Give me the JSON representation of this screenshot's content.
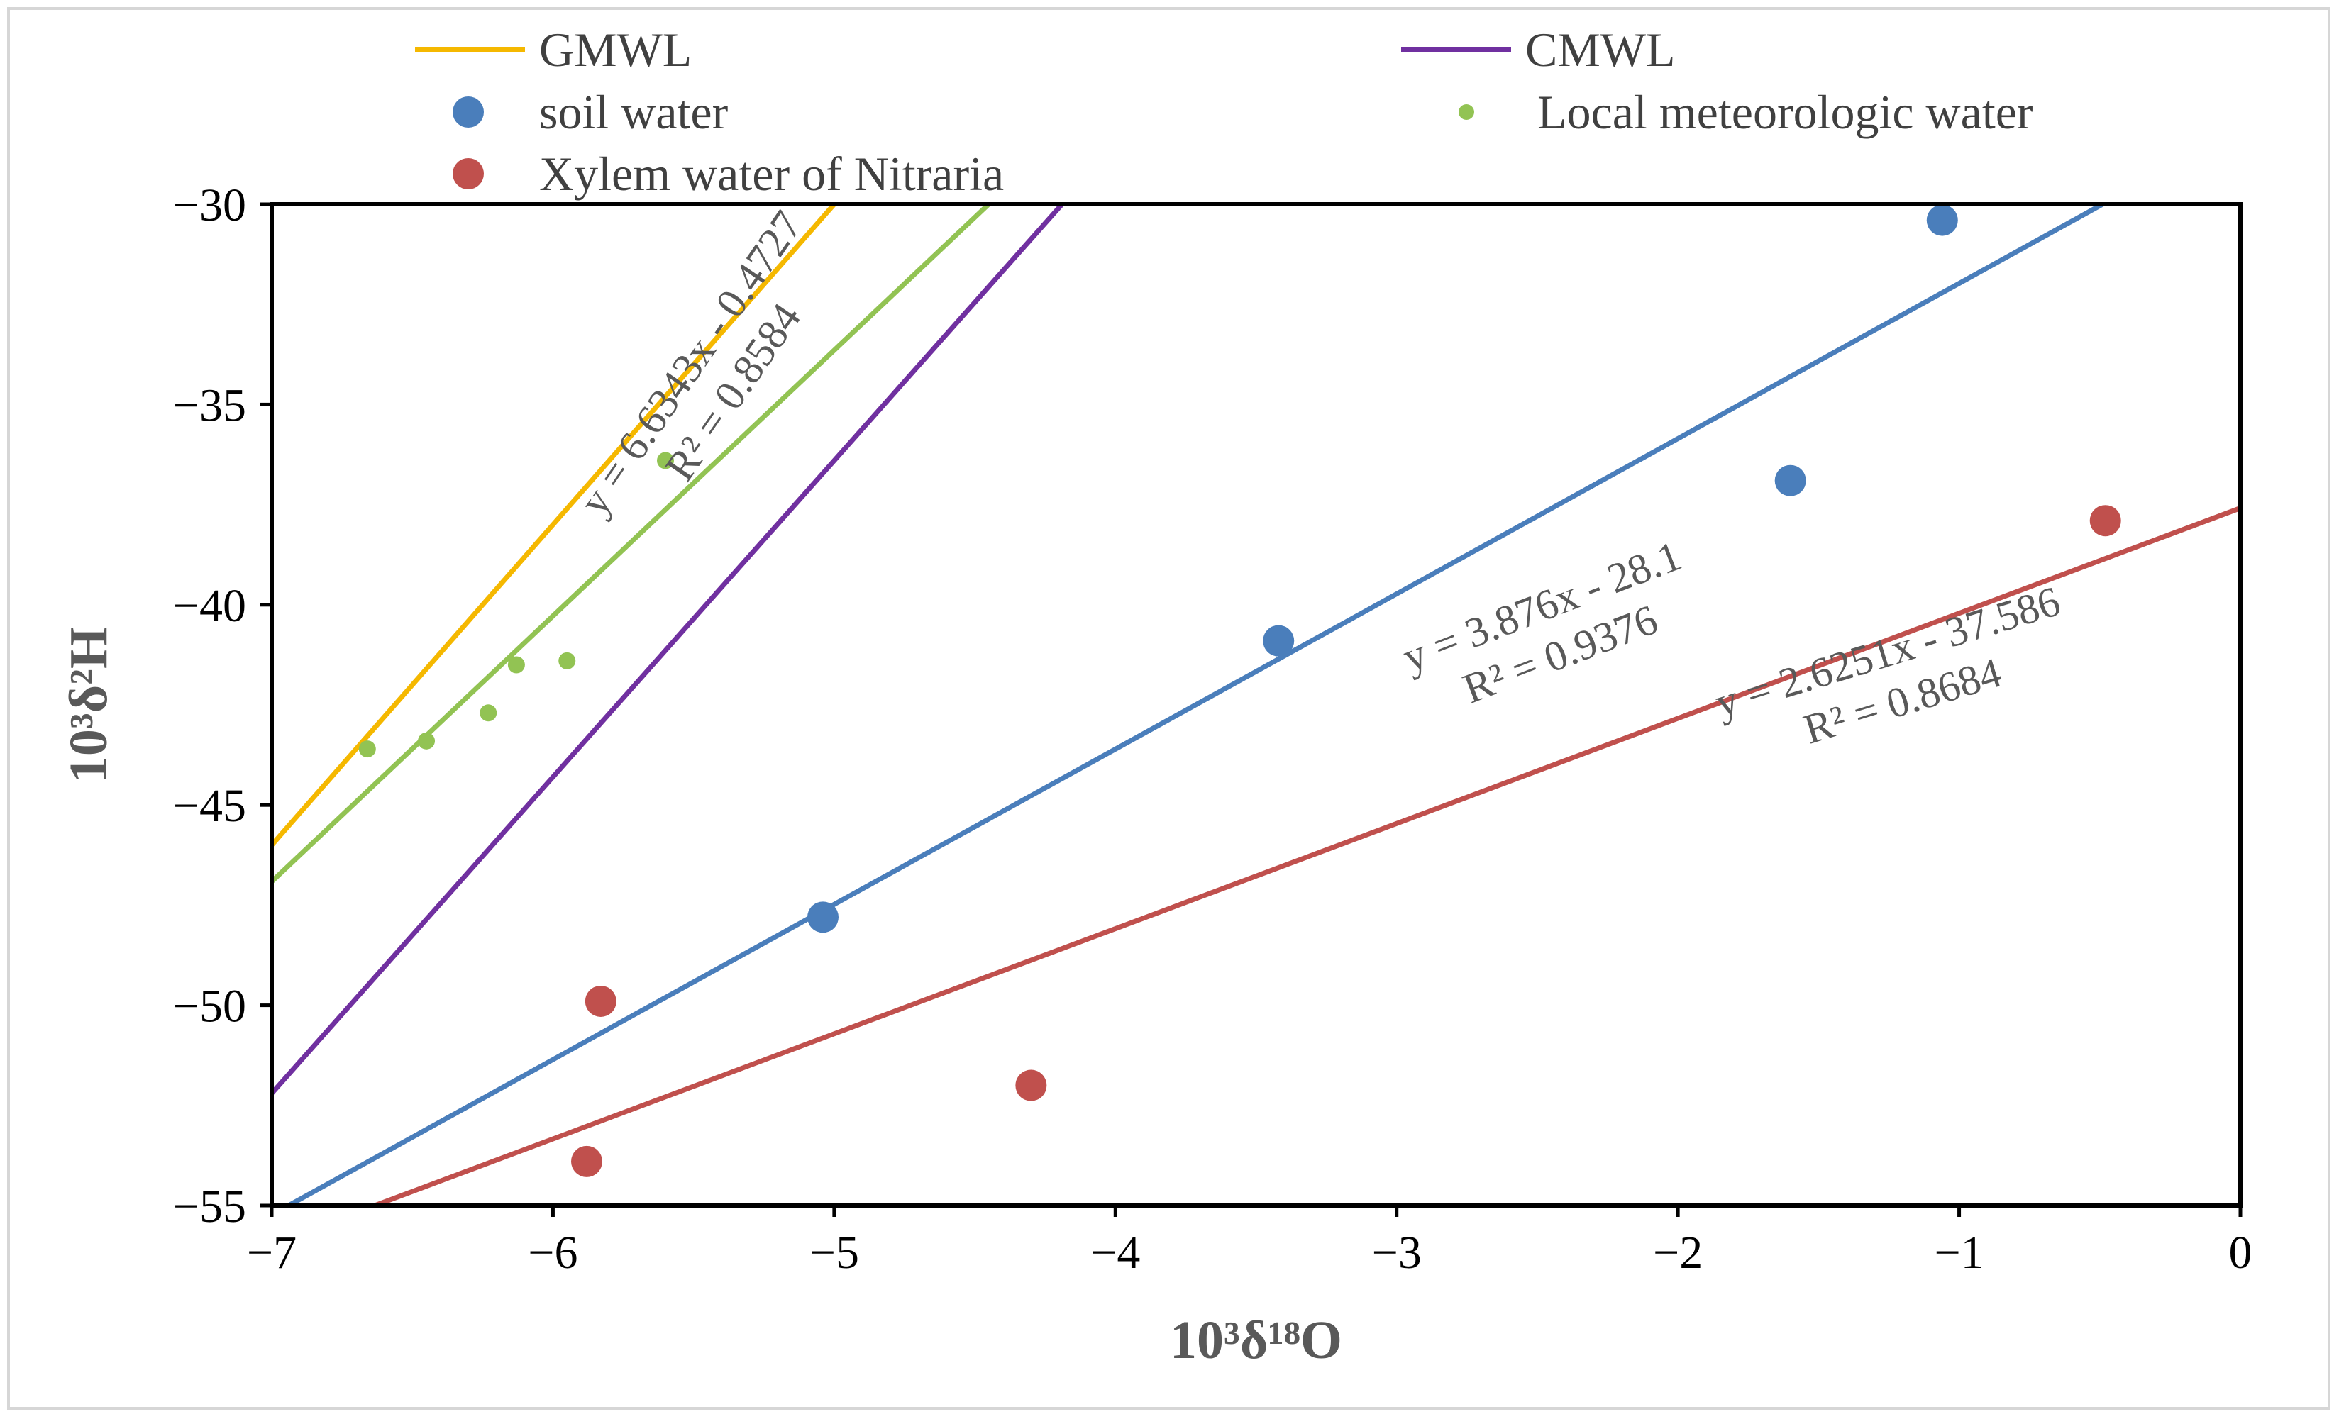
{
  "chart_data": {
    "type": "scatter",
    "title": "",
    "xlabel": "10³δ¹⁸O",
    "ylabel": "10³δ²H",
    "xlim": [
      -7,
      0
    ],
    "ylim": [
      -55,
      -30
    ],
    "x_ticks": [
      "−7",
      "−6",
      "−5",
      "−4",
      "−3",
      "−2",
      "−1",
      "0"
    ],
    "y_ticks": [
      "−30",
      "−35",
      "−40",
      "−45",
      "−50",
      "−55"
    ],
    "grid": false,
    "legend": [
      {
        "name": "GMWL",
        "kind": "line",
        "color": "#f5b800"
      },
      {
        "name": "CMWL",
        "kind": "line",
        "color": "#7030a0"
      },
      {
        "name": "soil water",
        "kind": "marker",
        "color": "#4a7ebb"
      },
      {
        "name": "Local meteorologic water",
        "kind": "marker-small",
        "color": "#92c353"
      },
      {
        "name": "Xylem water of Nitraria",
        "kind": "marker",
        "color": "#c0504d"
      }
    ],
    "lines": [
      {
        "name": "GMWL",
        "slope": 8.0,
        "intercept": 10.0,
        "color": "#f5b800"
      },
      {
        "name": "Local meteorologic water trend",
        "slope": 6.6343,
        "intercept": -0.4727,
        "color": "#92c353"
      },
      {
        "name": "CMWL",
        "slope": 7.9,
        "intercept": 3.1,
        "color": "#7030a0"
      },
      {
        "name": "soil water trend",
        "slope": 3.876,
        "intercept": -28.1,
        "color": "#4a7ebb"
      },
      {
        "name": "Xylem water trend",
        "slope": 2.6251,
        "intercept": -37.586,
        "color": "#c0504d"
      }
    ],
    "series": [
      {
        "name": "soil water",
        "color": "#4a7ebb",
        "points": [
          [
            -5.04,
            -47.8
          ],
          [
            -3.42,
            -40.9
          ],
          [
            -1.6,
            -36.9
          ],
          [
            -1.06,
            -30.4
          ]
        ]
      },
      {
        "name": "Local meteorologic water",
        "color": "#92c353",
        "points": [
          [
            -6.66,
            -43.6
          ],
          [
            -6.45,
            -43.4
          ],
          [
            -6.23,
            -42.7
          ],
          [
            -6.13,
            -41.5
          ],
          [
            -5.95,
            -41.4
          ],
          [
            -5.6,
            -36.4
          ]
        ]
      },
      {
        "name": "Xylem water of Nitraria",
        "color": "#c0504d",
        "points": [
          [
            -5.83,
            -49.9
          ],
          [
            -5.88,
            -53.9
          ],
          [
            -4.3,
            -52.0
          ],
          [
            -0.48,
            -37.9
          ]
        ]
      }
    ],
    "annotations": [
      {
        "id": "local",
        "line1": "y = 6.6343x - 0.4727",
        "line2": "R² = 0.8584",
        "color": "#595959"
      },
      {
        "id": "soil",
        "line1": "y = 3.876x - 28.1",
        "line2": "R² = 0.9376",
        "color": "#595959"
      },
      {
        "id": "xylem",
        "line1": "y = 2.6251x - 37.586",
        "line2": "R² = 0.8684",
        "color": "#595959"
      }
    ]
  }
}
